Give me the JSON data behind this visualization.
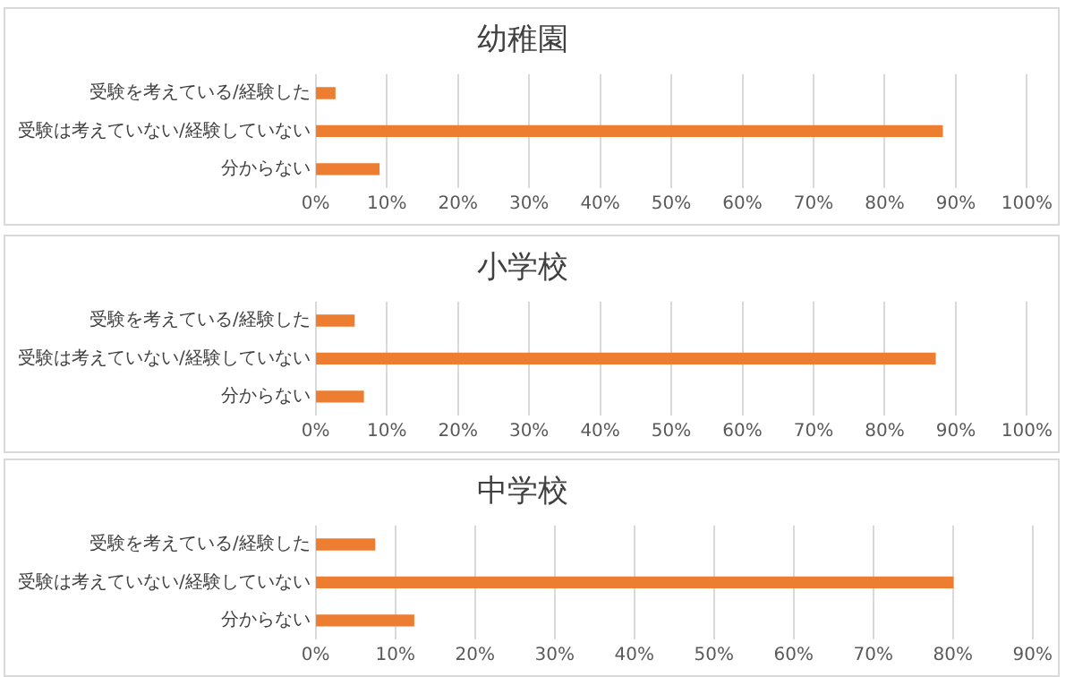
{
  "chart_data": [
    {
      "type": "bar",
      "orientation": "horizontal",
      "title": "幼稚園",
      "categories": [
        "受験を考えている/経験した",
        "受験は考えていない/経験していない",
        "分からない"
      ],
      "values": [
        2.7,
        88.1,
        8.9
      ],
      "color": "#ed7d31",
      "xlim": [
        0,
        100
      ],
      "xticks": [
        {
          "value": 0,
          "label": "0%"
        },
        {
          "value": 10,
          "label": "10%"
        },
        {
          "value": 20,
          "label": "20%"
        },
        {
          "value": 30,
          "label": "30%"
        },
        {
          "value": 40,
          "label": "40%"
        },
        {
          "value": 50,
          "label": "50%"
        },
        {
          "value": 60,
          "label": "60%"
        },
        {
          "value": 70,
          "label": "70%"
        },
        {
          "value": 80,
          "label": "80%"
        },
        {
          "value": 90,
          "label": "90%"
        },
        {
          "value": 100,
          "label": "100%"
        }
      ],
      "grid": "x",
      "legend": false
    },
    {
      "type": "bar",
      "orientation": "horizontal",
      "title": "小学校",
      "categories": [
        "受験を考えている/経験した",
        "受験は考えていない/経験していない",
        "分からない"
      ],
      "values": [
        5.4,
        87.1,
        6.7
      ],
      "color": "#ed7d31",
      "xlim": [
        0,
        100
      ],
      "xticks": [
        {
          "value": 0,
          "label": "0%"
        },
        {
          "value": 10,
          "label": "10%"
        },
        {
          "value": 20,
          "label": "20%"
        },
        {
          "value": 30,
          "label": "30%"
        },
        {
          "value": 40,
          "label": "40%"
        },
        {
          "value": 50,
          "label": "50%"
        },
        {
          "value": 60,
          "label": "60%"
        },
        {
          "value": 70,
          "label": "70%"
        },
        {
          "value": 80,
          "label": "80%"
        },
        {
          "value": 90,
          "label": "90%"
        },
        {
          "value": 100,
          "label": "100%"
        }
      ],
      "grid": "x",
      "legend": false
    },
    {
      "type": "bar",
      "orientation": "horizontal",
      "title": "中学校",
      "categories": [
        "受験を考えている/経験した",
        "受験は考えていない/経験していない",
        "分からない"
      ],
      "values": [
        7.4,
        80.0,
        12.3
      ],
      "color": "#ed7d31",
      "xlim": [
        0,
        90
      ],
      "xticks": [
        {
          "value": 0,
          "label": "0%"
        },
        {
          "value": 10,
          "label": "10%"
        },
        {
          "value": 20,
          "label": "20%"
        },
        {
          "value": 30,
          "label": "30%"
        },
        {
          "value": 40,
          "label": "40%"
        },
        {
          "value": 50,
          "label": "50%"
        },
        {
          "value": 60,
          "label": "60%"
        },
        {
          "value": 70,
          "label": "70%"
        },
        {
          "value": 80,
          "label": "80%"
        },
        {
          "value": 90,
          "label": "90%"
        }
      ],
      "grid": "x",
      "legend": false
    }
  ]
}
